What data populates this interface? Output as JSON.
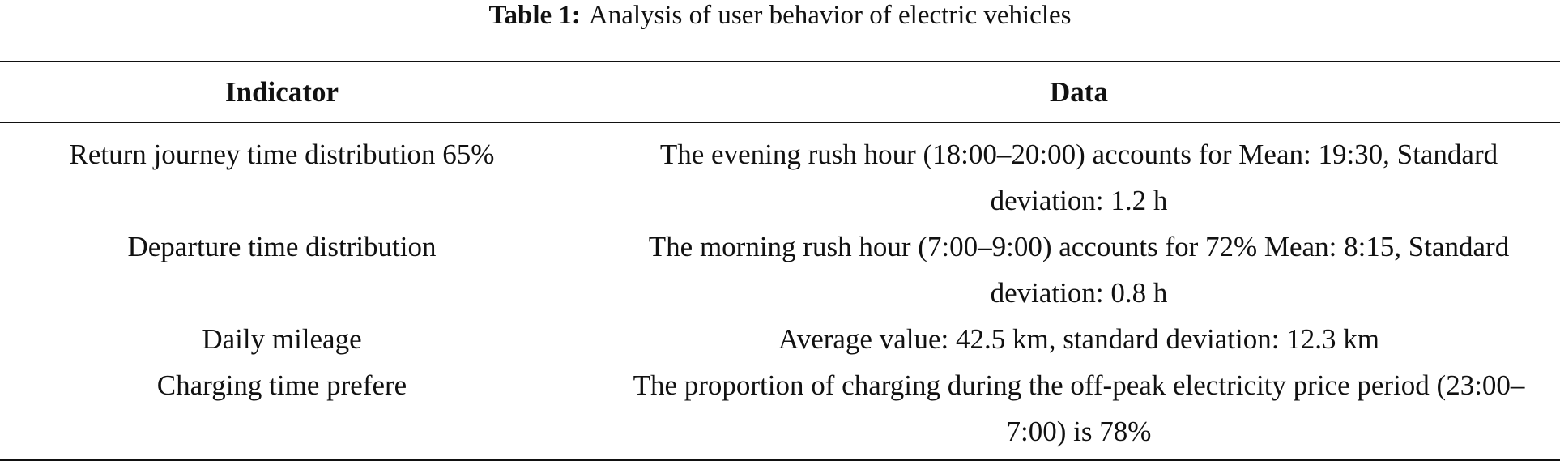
{
  "caption": {
    "label": "Table 1:",
    "text": "Analysis of user behavior of electric vehicles"
  },
  "table": {
    "header": [
      "Indicator",
      "Data"
    ],
    "rows": [
      [
        "Return journey time distribution 65%",
        "The evening rush hour (18:00–20:00) accounts for Mean: 19:30, Standard deviation: 1.2 h"
      ],
      [
        "Departure time distribution",
        "The morning rush hour (7:00–9:00) accounts for 72% Mean: 8:15, Standard deviation: 0.8 h"
      ],
      [
        "Daily mileage",
        "Average value: 42.5 km, standard deviation: 12.3 km"
      ],
      [
        "Charging time prefere",
        "The proportion of charging during the off-peak electricity price period (23:00–7:00) is 78%"
      ]
    ]
  }
}
